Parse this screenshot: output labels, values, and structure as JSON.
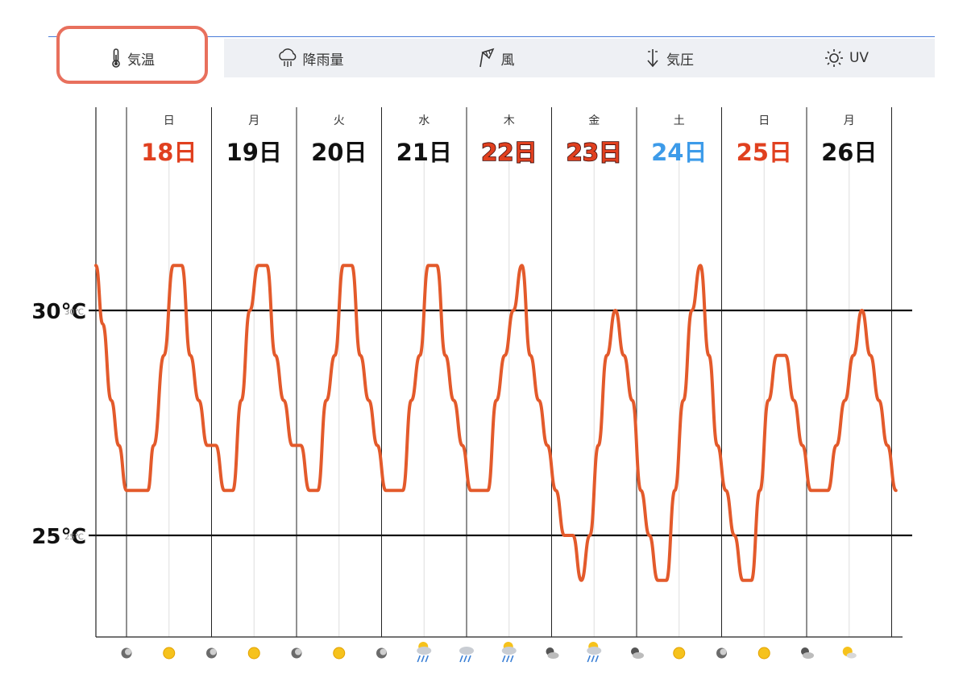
{
  "tabs": [
    {
      "label": "気温",
      "icon": "thermometer-icon",
      "active": true
    },
    {
      "label": "降雨量",
      "icon": "rain-cloud-icon",
      "active": false
    },
    {
      "label": "風",
      "icon": "wind-sock-icon",
      "active": false
    },
    {
      "label": "気圧",
      "icon": "pressure-arrow-icon",
      "active": false
    },
    {
      "label": "UV",
      "icon": "sun-icon",
      "active": false
    }
  ],
  "colors": {
    "line": "#e35a2b",
    "highlight": "#e8705d",
    "red": "#e0401f",
    "blue": "#3d9be9",
    "black": "#111111",
    "tab_bg": "#eef0f4"
  },
  "chart_data": {
    "type": "line",
    "ylabel": "",
    "y_ticks": [
      {
        "value": 30,
        "label": "30℃",
        "small": "30℃"
      },
      {
        "value": 25,
        "label": "25℃",
        "small": "25℃"
      }
    ],
    "ylim": [
      23.0,
      34.8
    ],
    "days": [
      {
        "dow": "日",
        "date": "18日",
        "color": "red",
        "style": "plain"
      },
      {
        "dow": "月",
        "date": "19日",
        "color": "black",
        "style": "plain"
      },
      {
        "dow": "火",
        "date": "20日",
        "color": "black",
        "style": "plain"
      },
      {
        "dow": "水",
        "date": "21日",
        "color": "black",
        "style": "plain"
      },
      {
        "dow": "木",
        "date": "22日",
        "color": "red",
        "style": "outlined"
      },
      {
        "dow": "金",
        "date": "23日",
        "color": "red",
        "style": "outlined"
      },
      {
        "dow": "土",
        "date": "24日",
        "color": "blue",
        "style": "plain"
      },
      {
        "dow": "日",
        "date": "25日",
        "color": "red",
        "style": "plain"
      },
      {
        "dow": "月",
        "date": "26日",
        "color": "black",
        "style": "plain"
      }
    ],
    "series": [
      {
        "values": [
          [
            -0.36,
            31.0
          ],
          [
            -0.28,
            29.7
          ],
          [
            -0.18,
            28.0
          ],
          [
            -0.09,
            27.0
          ],
          [
            0.0,
            26.0
          ],
          [
            0.25,
            26.0
          ],
          [
            0.32,
            27.0
          ],
          [
            0.44,
            29.0
          ],
          [
            0.55,
            31.0
          ],
          [
            0.65,
            31.0
          ],
          [
            0.75,
            29.0
          ],
          [
            0.85,
            28.0
          ],
          [
            0.95,
            27.0
          ],
          [
            1.05,
            27.0
          ],
          [
            1.15,
            26.0
          ],
          [
            1.25,
            26.0
          ],
          [
            1.35,
            28.0
          ],
          [
            1.45,
            30.0
          ],
          [
            1.55,
            31.0
          ],
          [
            1.65,
            31.0
          ],
          [
            1.75,
            29.0
          ],
          [
            1.85,
            28.0
          ],
          [
            1.95,
            27.0
          ],
          [
            2.05,
            27.0
          ],
          [
            2.15,
            26.0
          ],
          [
            2.25,
            26.0
          ],
          [
            2.35,
            28.0
          ],
          [
            2.45,
            29.0
          ],
          [
            2.55,
            31.0
          ],
          [
            2.65,
            31.0
          ],
          [
            2.75,
            29.0
          ],
          [
            2.85,
            28.0
          ],
          [
            2.95,
            27.0
          ],
          [
            3.05,
            26.0
          ],
          [
            3.15,
            26.0
          ],
          [
            3.25,
            26.0
          ],
          [
            3.35,
            28.0
          ],
          [
            3.45,
            29.0
          ],
          [
            3.55,
            31.0
          ],
          [
            3.65,
            31.0
          ],
          [
            3.75,
            29.0
          ],
          [
            3.85,
            28.0
          ],
          [
            3.95,
            27.0
          ],
          [
            4.05,
            26.0
          ],
          [
            4.15,
            26.0
          ],
          [
            4.25,
            26.0
          ],
          [
            4.35,
            28.0
          ],
          [
            4.45,
            29.0
          ],
          [
            4.55,
            30.0
          ],
          [
            4.65,
            31.0
          ],
          [
            4.75,
            29.0
          ],
          [
            4.85,
            28.0
          ],
          [
            4.95,
            27.0
          ],
          [
            5.05,
            26.0
          ],
          [
            5.15,
            25.0
          ],
          [
            5.25,
            25.0
          ],
          [
            5.35,
            24.0
          ],
          [
            5.45,
            25.0
          ],
          [
            5.55,
            27.0
          ],
          [
            5.65,
            29.0
          ],
          [
            5.75,
            30.0
          ],
          [
            5.85,
            29.0
          ],
          [
            5.95,
            28.0
          ],
          [
            6.05,
            26.0
          ],
          [
            6.15,
            25.0
          ],
          [
            6.25,
            24.0
          ],
          [
            6.35,
            24.0
          ],
          [
            6.45,
            26.0
          ],
          [
            6.55,
            28.0
          ],
          [
            6.65,
            30.0
          ],
          [
            6.75,
            31.0
          ],
          [
            6.85,
            29.0
          ],
          [
            6.95,
            27.0
          ],
          [
            7.05,
            26.0
          ],
          [
            7.15,
            25.0
          ],
          [
            7.25,
            24.0
          ],
          [
            7.35,
            24.0
          ],
          [
            7.45,
            26.0
          ],
          [
            7.55,
            28.0
          ],
          [
            7.65,
            29.0
          ],
          [
            7.75,
            29.0
          ],
          [
            7.85,
            28.0
          ],
          [
            7.95,
            27.0
          ],
          [
            8.05,
            26.0
          ],
          [
            8.15,
            26.0
          ],
          [
            8.25,
            26.0
          ],
          [
            8.35,
            27.0
          ],
          [
            8.45,
            28.0
          ],
          [
            8.55,
            29.0
          ],
          [
            8.65,
            30.0
          ],
          [
            8.75,
            29.0
          ],
          [
            8.85,
            28.0
          ],
          [
            8.95,
            27.0
          ],
          [
            9.05,
            26.0
          ]
        ]
      }
    ],
    "weather_icons": [
      "night-icon",
      "sun-icon",
      "night-icon",
      "sun-icon",
      "night-icon",
      "sun-icon",
      "night-icon",
      "sun-rain-icon",
      "cloud-rain-icon",
      "sun-rain-icon",
      "cloud-night-icon",
      "sun-rain-icon",
      "cloud-night-icon",
      "sun-icon",
      "night-icon",
      "sun-icon",
      "cloud-night-icon",
      "sun-cloud-icon"
    ],
    "grid": true
  }
}
